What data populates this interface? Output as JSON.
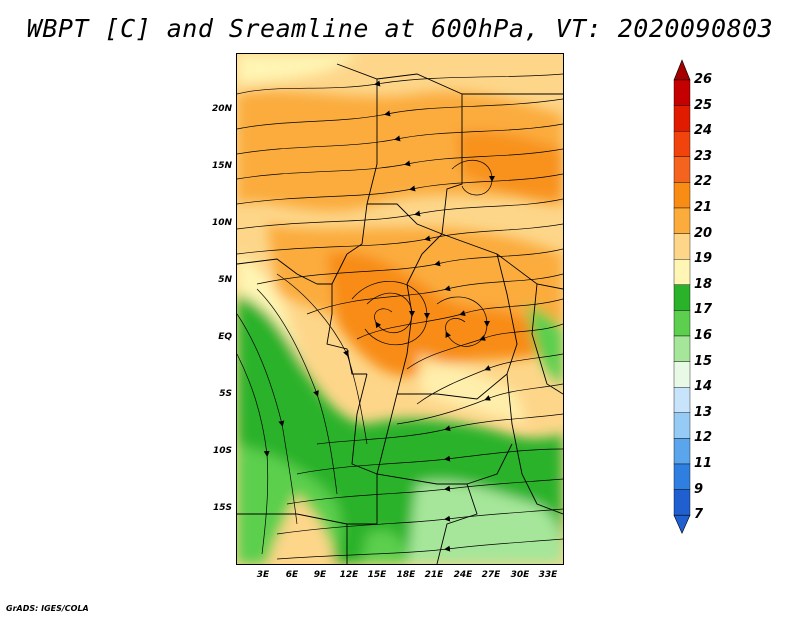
{
  "title": "WBPT [C] and Sreamline at 600hPa, VT: 2020090803",
  "footer": "GrADS: IGES/COLA",
  "map": {
    "lat_ticks": [
      "20N",
      "15N",
      "10N",
      "5N",
      "EQ",
      "5S",
      "10S",
      "15S"
    ],
    "lon_ticks": [
      "3E",
      "6E",
      "9E",
      "12E",
      "15E",
      "18E",
      "21E",
      "24E",
      "27E",
      "30E",
      "33E"
    ]
  },
  "colorbar": {
    "levels": [
      "26",
      "25",
      "24",
      "23",
      "22",
      "21",
      "20",
      "19",
      "18",
      "17",
      "16",
      "15",
      "14",
      "13",
      "12",
      "11",
      "9",
      "7"
    ],
    "colors": [
      "#a50000",
      "#c40000",
      "#e11b00",
      "#f0440c",
      "#f4641e",
      "#f88c14",
      "#fbac3c",
      "#fdd68a",
      "#fff5b4",
      "#2ab22a",
      "#5ccf4e",
      "#a6e69a",
      "#e8fae6",
      "#c8e4fa",
      "#96cbf5",
      "#5aa5ec",
      "#2f7fe0",
      "#1f5fd0"
    ]
  }
}
